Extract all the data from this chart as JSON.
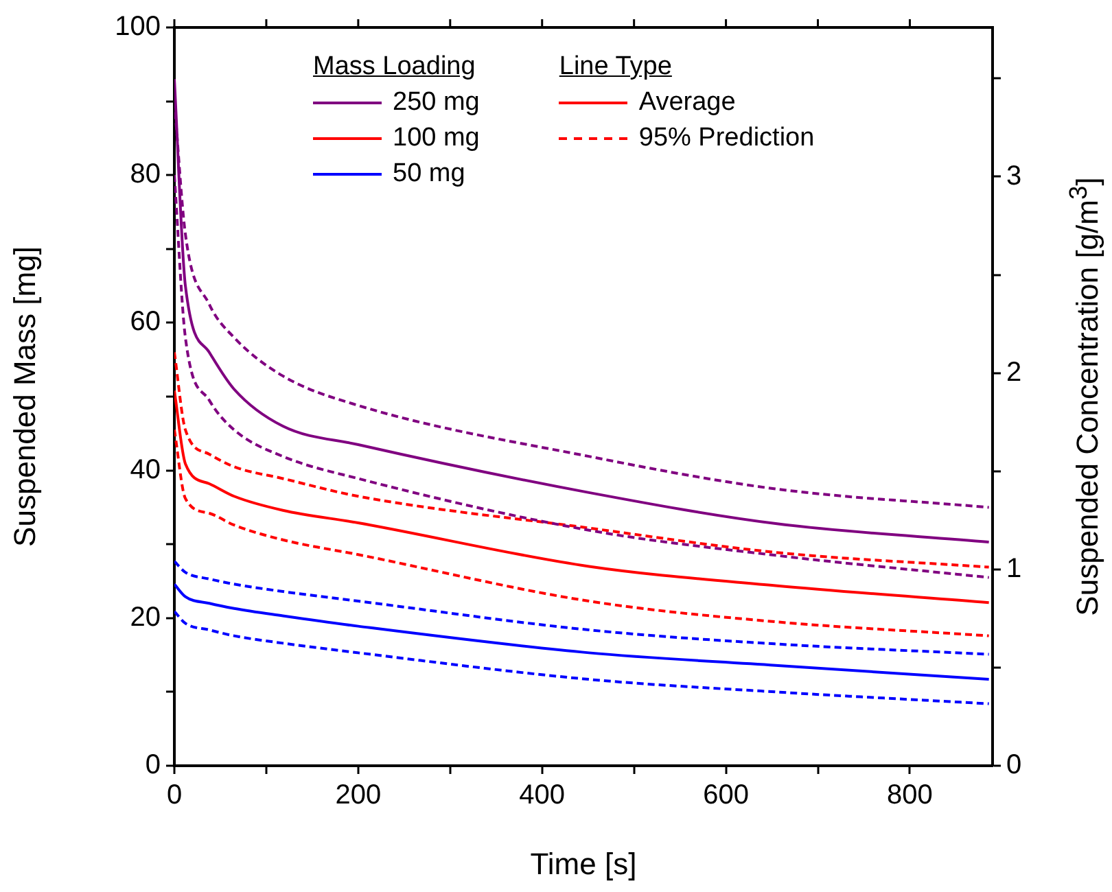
{
  "chart_data": {
    "type": "line",
    "xlabel": "Time [s]",
    "ylabel": "Suspended Mass [mg]",
    "y2label": "Suspended Concentration [g/m$^{3}$]",
    "legend_title": "Mass Loading",
    "annotations": [
      "Line Type",
      "Average"
    ],
    "x": [
      0,
      12,
      38,
      65,
      118,
      200,
      451,
      654,
      886
    ],
    "xlim": [
      0,
      890
    ],
    "xticks": [
      0,
      {
        "value": 100,
        "label": null
      },
      200,
      {
        "value": 300,
        "label": null
      },
      400,
      {
        "value": 500,
        "label": null
      },
      600,
      {
        "value": 700,
        "label": null
      },
      800
    ],
    "ylim": [
      0,
      100
    ],
    "yticks": [
      0,
      {
        "value": 10,
        "label": null
      },
      20,
      {
        "value": 30,
        "label": null
      },
      40,
      {
        "value": 50,
        "label": null
      },
      60,
      {
        "value": 70,
        "label": null
      },
      80,
      {
        "value": 90,
        "label": null
      },
      100
    ],
    "y2lim": [
      0,
      3.76
    ],
    "y2ticks": [
      0,
      {
        "value": 0.5,
        "label": null
      },
      1,
      {
        "value": 1.5,
        "label": null
      },
      2,
      {
        "value": 2.5,
        "label": null
      },
      3,
      {
        "value": 3.5,
        "label": null
      }
    ],
    "grid": false,
    "legend": "top",
    "marker": "none",
    "series": [
      {
        "name": "250 mg",
        "color": "#800080",
        "line_style": "solid",
        "values": [
          93,
          65,
          56,
          51,
          46,
          43.5,
          37,
          32.8,
          30.3
        ]
      },
      {
        "name": "100 mg",
        "color": "#ff0000",
        "line_style": "solid",
        "values": [
          50.8,
          40.9,
          38.2,
          36.5,
          34.6,
          32.9,
          27,
          24.4,
          22.1
        ]
      },
      {
        "name": "50 mg",
        "color": "#0000ff",
        "line_style": "solid",
        "values": [
          24.6,
          22.9,
          22,
          21.3,
          20.3,
          18.9,
          15.3,
          13.6,
          11.7
        ]
      },
      {
        "color": "#800080",
        "line_style": "dashed",
        "values": [
          90,
          72,
          62.5,
          58,
          52.8,
          48.8,
          41.9,
          37.5,
          35
        ]
      },
      {
        "color": "#800080",
        "line_style": "dashed",
        "values": [
          80,
          58,
          49.5,
          45.5,
          41.9,
          38.9,
          31.9,
          28.5,
          25.5
        ]
      },
      {
        "name": "95% Prediction",
        "color": "#ff0000",
        "line_style": "dashed",
        "values": [
          56,
          45.5,
          42.2,
          40.5,
          38.9,
          36.5,
          32.2,
          28.9,
          26.9
        ]
      },
      {
        "color": "#ff0000",
        "line_style": "dashed",
        "values": [
          45.5,
          36.2,
          34.2,
          32.6,
          30.6,
          28.6,
          22.3,
          19.5,
          17.6
        ]
      },
      {
        "color": "#0000ff",
        "line_style": "dashed",
        "values": [
          27.7,
          26.2,
          25.3,
          24.6,
          23.6,
          22.3,
          18.4,
          16.5,
          15.1
        ]
      },
      {
        "color": "#0000ff",
        "line_style": "dashed",
        "values": [
          20.9,
          19.3,
          18.4,
          17.6,
          16.6,
          15.3,
          11.7,
          10,
          8.4
        ]
      }
    ]
  }
}
